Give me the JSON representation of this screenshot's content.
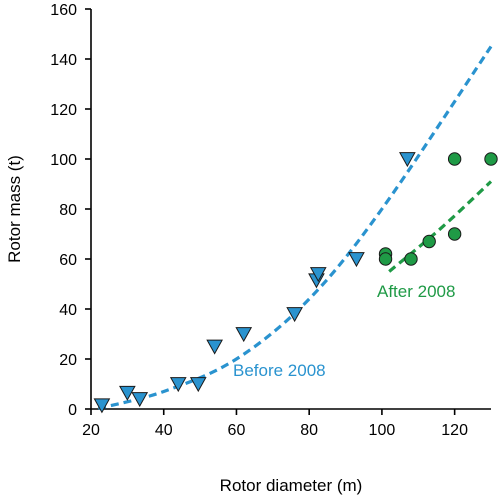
{
  "chart_data": {
    "type": "scatter",
    "xlabel": "Rotor diameter (m)",
    "ylabel": "Rotor mass (t)",
    "xlim": [
      20,
      130
    ],
    "ylim": [
      0,
      160
    ],
    "xticks": [
      20,
      40,
      60,
      80,
      100,
      120
    ],
    "yticks": [
      0,
      20,
      40,
      60,
      80,
      100,
      120,
      140,
      160
    ],
    "grid": false,
    "series": [
      {
        "marker": "triangle-down",
        "color": "#2a93cf",
        "points": [
          [
            23,
            1.5
          ],
          [
            30,
            6.5
          ],
          [
            33.4,
            4
          ],
          [
            44,
            10
          ],
          [
            49.5,
            10
          ],
          [
            54,
            25
          ],
          [
            62,
            30
          ],
          [
            76,
            38
          ],
          [
            82,
            51.5
          ],
          [
            82.5,
            54
          ],
          [
            93,
            60
          ],
          [
            107,
            100
          ]
        ]
      },
      {
        "marker": "circle",
        "color": "#1f9a46",
        "points": [
          [
            101,
            62
          ],
          [
            101,
            60
          ],
          [
            108,
            60
          ],
          [
            113,
            67
          ],
          [
            120,
            70
          ],
          [
            120,
            100
          ],
          [
            130,
            100
          ]
        ]
      }
    ],
    "fits": [
      {
        "color": "#2a93cf",
        "style": "dashed",
        "x_range": [
          22,
          130
        ],
        "y_at": [
          [
            22,
            0.2
          ],
          [
            40,
            7
          ],
          [
            60,
            20
          ],
          [
            80,
            44
          ],
          [
            100,
            80
          ],
          [
            130,
            145
          ]
        ]
      },
      {
        "color": "#1f9a46",
        "style": "dashed",
        "x_range": [
          102,
          130
        ],
        "y_at": [
          [
            102,
            55
          ],
          [
            116,
            72
          ],
          [
            130,
            91
          ]
        ]
      }
    ],
    "annotations": [
      {
        "text": "Before 2008",
        "color": "#2a93cf"
      },
      {
        "text": "After 2008",
        "color": "#1f9a46"
      }
    ]
  }
}
